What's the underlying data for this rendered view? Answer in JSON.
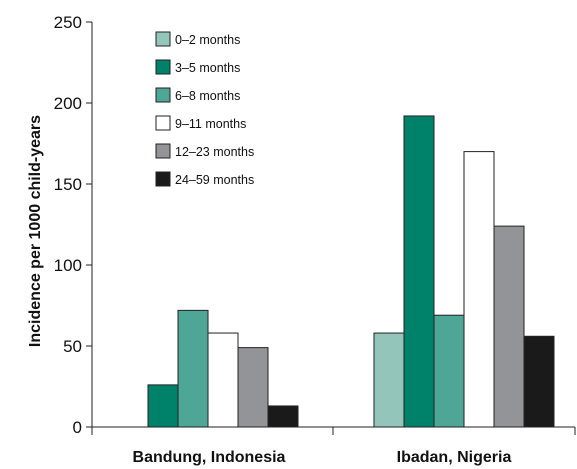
{
  "chart_data": {
    "type": "bar",
    "title": "",
    "xlabel": "",
    "ylabel": "Incidence per 1000 child-years",
    "ylim": [
      0,
      250
    ],
    "yticks": [
      0,
      50,
      100,
      150,
      200,
      250
    ],
    "categories": [
      "Bandung, Indonesia",
      "Ibadan, Nigeria"
    ],
    "series": [
      {
        "name": "0–2 months",
        "color": "#93c5bb",
        "values": [
          null,
          58
        ]
      },
      {
        "name": "3–5 months",
        "color": "#00826a",
        "values": [
          26,
          192
        ]
      },
      {
        "name": "6–8 months",
        "color": "#4da696",
        "values": [
          72,
          69
        ]
      },
      {
        "name": "9–11 months",
        "color": "#ffffff",
        "values": [
          58,
          170
        ]
      },
      {
        "name": "12–23 months",
        "color": "#929497",
        "values": [
          49,
          124
        ]
      },
      {
        "name": "24–59 months",
        "color": "#1a1a1a",
        "values": [
          13,
          56
        ]
      }
    ],
    "legend_position": "top-left",
    "grid": false
  }
}
